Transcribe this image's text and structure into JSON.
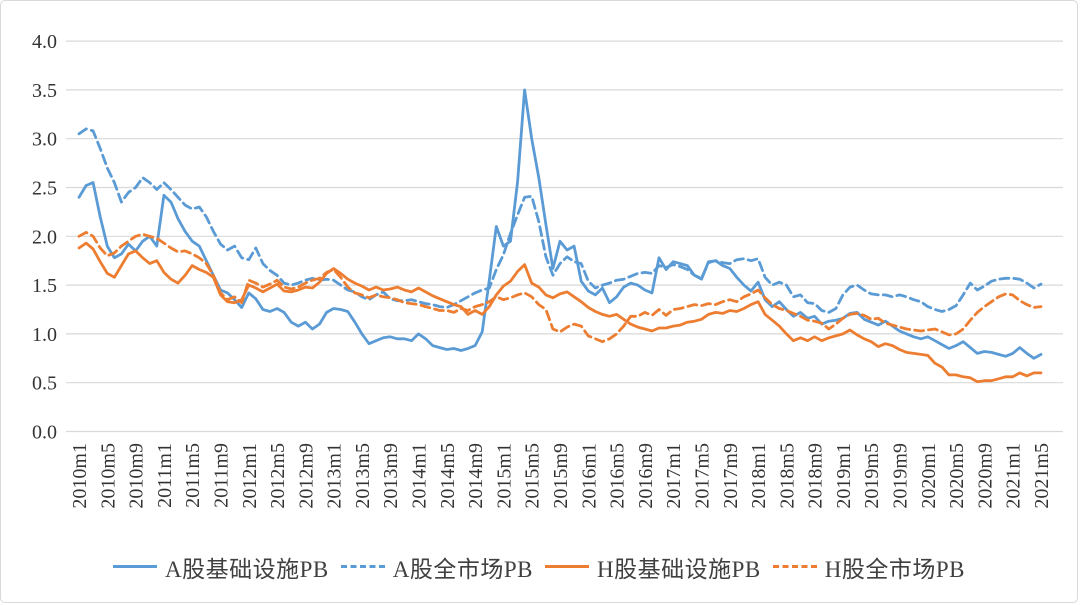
{
  "figure": {
    "background": "#ffffff",
    "border_color": "#d9d9d9"
  },
  "chart_data": {
    "type": "line",
    "title": "",
    "xlabel": "",
    "ylabel": "",
    "x_start": "2010m1",
    "x_end": "2021m5",
    "x_frequency": "monthly",
    "ylim": [
      0.0,
      4.0
    ],
    "grid": "horizontal",
    "grid_color": "#d9d9d9",
    "tick_color": "#333333",
    "legend_position": "bottom",
    "y_ticks": [
      "0.0",
      "0.5",
      "1.0",
      "1.5",
      "2.0",
      "2.5",
      "3.0",
      "3.5",
      "4.0"
    ],
    "x_tick_labels": [
      "2010m1",
      "2010m5",
      "2010m9",
      "2011m1",
      "2011m5",
      "2011m9",
      "2012m1",
      "2012m5",
      "2012m9",
      "2013m1",
      "2013m5",
      "2013m9",
      "2014m1",
      "2014m5",
      "2014m9",
      "2015m1",
      "2015m5",
      "2015m9",
      "2016m1",
      "2016m5",
      "2016m9",
      "2017m1",
      "2017m5",
      "2017m9",
      "2018m1",
      "2018m5",
      "2018m9",
      "2019m1",
      "2019m5",
      "2019m9",
      "2020m1",
      "2020m5",
      "2020m9",
      "2021m1",
      "2021m5"
    ],
    "series": [
      {
        "name": "A股基础设施PB",
        "style": "solid",
        "color": "#5B9BD5",
        "values": [
          2.4,
          2.52,
          2.55,
          2.2,
          1.9,
          1.78,
          1.82,
          1.92,
          1.85,
          1.95,
          2.0,
          1.9,
          2.42,
          2.35,
          2.18,
          2.05,
          1.95,
          1.9,
          1.75,
          1.6,
          1.45,
          1.42,
          1.35,
          1.27,
          1.42,
          1.36,
          1.25,
          1.23,
          1.26,
          1.22,
          1.12,
          1.08,
          1.12,
          1.05,
          1.1,
          1.22,
          1.26,
          1.25,
          1.23,
          1.12,
          1.0,
          0.9,
          0.93,
          0.96,
          0.97,
          0.95,
          0.95,
          0.93,
          1.0,
          0.95,
          0.88,
          0.86,
          0.84,
          0.85,
          0.83,
          0.85,
          0.88,
          1.02,
          1.55,
          2.1,
          1.9,
          1.95,
          2.56,
          3.5,
          3.0,
          2.6,
          2.12,
          1.67,
          1.95,
          1.86,
          1.9,
          1.54,
          1.44,
          1.4,
          1.47,
          1.32,
          1.38,
          1.48,
          1.52,
          1.5,
          1.45,
          1.42,
          1.78,
          1.66,
          1.74,
          1.72,
          1.7,
          1.6,
          1.56,
          1.74,
          1.75,
          1.7,
          1.67,
          1.58,
          1.5,
          1.44,
          1.53,
          1.35,
          1.28,
          1.33,
          1.25,
          1.18,
          1.22,
          1.16,
          1.18,
          1.1,
          1.13,
          1.14,
          1.16,
          1.21,
          1.22,
          1.15,
          1.12,
          1.09,
          1.13,
          1.08,
          1.03,
          1.0,
          0.97,
          0.95,
          0.97,
          0.93,
          0.89,
          0.85,
          0.88,
          0.92,
          0.86,
          0.8,
          0.82,
          0.81,
          0.79,
          0.77,
          0.8,
          0.86,
          0.8,
          0.75,
          0.79
        ]
      },
      {
        "name": "A股全市场PB",
        "style": "dashed",
        "color": "#5B9BD5",
        "values": [
          3.05,
          3.1,
          3.08,
          2.9,
          2.7,
          2.55,
          2.35,
          2.45,
          2.5,
          2.6,
          2.55,
          2.48,
          2.55,
          2.48,
          2.4,
          2.32,
          2.28,
          2.3,
          2.2,
          2.05,
          1.92,
          1.86,
          1.9,
          1.78,
          1.76,
          1.88,
          1.72,
          1.65,
          1.6,
          1.52,
          1.5,
          1.52,
          1.55,
          1.57,
          1.55,
          1.56,
          1.55,
          1.5,
          1.45,
          1.43,
          1.38,
          1.35,
          1.4,
          1.43,
          1.36,
          1.34,
          1.34,
          1.35,
          1.33,
          1.31,
          1.3,
          1.28,
          1.27,
          1.3,
          1.34,
          1.38,
          1.42,
          1.45,
          1.47,
          1.66,
          1.81,
          2.03,
          2.22,
          2.4,
          2.41,
          2.15,
          1.79,
          1.6,
          1.72,
          1.79,
          1.74,
          1.72,
          1.54,
          1.47,
          1.5,
          1.52,
          1.55,
          1.56,
          1.59,
          1.62,
          1.63,
          1.62,
          1.7,
          1.68,
          1.71,
          1.69,
          1.66,
          1.6,
          1.57,
          1.73,
          1.75,
          1.73,
          1.72,
          1.76,
          1.77,
          1.75,
          1.77,
          1.58,
          1.5,
          1.53,
          1.5,
          1.38,
          1.4,
          1.32,
          1.31,
          1.24,
          1.22,
          1.26,
          1.4,
          1.48,
          1.5,
          1.45,
          1.41,
          1.4,
          1.4,
          1.38,
          1.4,
          1.38,
          1.35,
          1.33,
          1.28,
          1.25,
          1.23,
          1.25,
          1.29,
          1.4,
          1.52,
          1.45,
          1.49,
          1.54,
          1.56,
          1.57,
          1.57,
          1.56,
          1.52,
          1.47,
          1.51
        ]
      },
      {
        "name": "H股基础设施PB",
        "style": "solid",
        "color": "#ED7D31",
        "values": [
          1.88,
          1.93,
          1.87,
          1.74,
          1.62,
          1.58,
          1.7,
          1.82,
          1.85,
          1.78,
          1.72,
          1.75,
          1.63,
          1.56,
          1.52,
          1.6,
          1.7,
          1.66,
          1.63,
          1.58,
          1.4,
          1.33,
          1.32,
          1.35,
          1.5,
          1.47,
          1.43,
          1.47,
          1.51,
          1.44,
          1.43,
          1.45,
          1.48,
          1.47,
          1.53,
          1.62,
          1.67,
          1.62,
          1.56,
          1.52,
          1.49,
          1.45,
          1.48,
          1.45,
          1.46,
          1.48,
          1.45,
          1.43,
          1.47,
          1.43,
          1.39,
          1.36,
          1.33,
          1.3,
          1.28,
          1.2,
          1.24,
          1.2,
          1.28,
          1.4,
          1.49,
          1.54,
          1.64,
          1.71,
          1.52,
          1.48,
          1.4,
          1.37,
          1.41,
          1.43,
          1.38,
          1.33,
          1.27,
          1.23,
          1.2,
          1.18,
          1.2,
          1.15,
          1.1,
          1.07,
          1.05,
          1.03,
          1.06,
          1.06,
          1.08,
          1.09,
          1.12,
          1.13,
          1.15,
          1.2,
          1.22,
          1.21,
          1.24,
          1.23,
          1.26,
          1.3,
          1.33,
          1.2,
          1.14,
          1.08,
          1.0,
          0.93,
          0.96,
          0.93,
          0.97,
          0.93,
          0.96,
          0.98,
          1.0,
          1.04,
          0.99,
          0.95,
          0.92,
          0.87,
          0.9,
          0.88,
          0.84,
          0.81,
          0.8,
          0.79,
          0.78,
          0.7,
          0.66,
          0.58,
          0.58,
          0.56,
          0.55,
          0.51,
          0.52,
          0.52,
          0.54,
          0.56,
          0.56,
          0.6,
          0.57,
          0.6,
          0.6
        ]
      },
      {
        "name": "H股全市场PB",
        "style": "dashed",
        "color": "#ED7D31",
        "values": [
          2.0,
          2.04,
          2.0,
          1.88,
          1.8,
          1.83,
          1.9,
          1.95,
          2.0,
          2.02,
          2.0,
          1.98,
          1.93,
          1.88,
          1.84,
          1.85,
          1.82,
          1.78,
          1.72,
          1.6,
          1.42,
          1.35,
          1.38,
          1.32,
          1.55,
          1.52,
          1.48,
          1.51,
          1.55,
          1.48,
          1.46,
          1.48,
          1.52,
          1.55,
          1.57,
          1.63,
          1.66,
          1.58,
          1.48,
          1.42,
          1.4,
          1.37,
          1.4,
          1.38,
          1.37,
          1.35,
          1.32,
          1.31,
          1.3,
          1.28,
          1.26,
          1.24,
          1.24,
          1.22,
          1.26,
          1.24,
          1.28,
          1.3,
          1.33,
          1.38,
          1.35,
          1.37,
          1.4,
          1.42,
          1.38,
          1.3,
          1.25,
          1.05,
          1.02,
          1.07,
          1.1,
          1.08,
          0.98,
          0.95,
          0.92,
          0.95,
          1.0,
          1.08,
          1.18,
          1.18,
          1.22,
          1.19,
          1.25,
          1.19,
          1.25,
          1.26,
          1.28,
          1.3,
          1.29,
          1.31,
          1.3,
          1.33,
          1.35,
          1.33,
          1.38,
          1.41,
          1.45,
          1.37,
          1.3,
          1.26,
          1.24,
          1.21,
          1.18,
          1.14,
          1.13,
          1.11,
          1.05,
          1.1,
          1.16,
          1.2,
          1.21,
          1.19,
          1.15,
          1.16,
          1.11,
          1.09,
          1.07,
          1.05,
          1.04,
          1.03,
          1.04,
          1.05,
          1.02,
          0.99,
          1.0,
          1.05,
          1.14,
          1.22,
          1.28,
          1.33,
          1.38,
          1.41,
          1.4,
          1.34,
          1.3,
          1.27,
          1.28
        ]
      }
    ]
  }
}
